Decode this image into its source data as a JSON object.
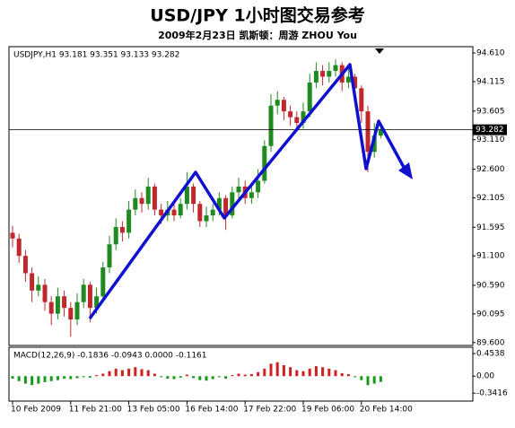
{
  "chart_data": [
    {
      "type": "candlestick",
      "title": "USD/JPY 1小时图交易参考",
      "subtitle": "2009年2月23日 凯斯顿：周游 ZHOU You",
      "legend_text": "USDJPY,H1  93.181 93.351 93.133 93.282",
      "categories": [
        "10 Feb 2009",
        null,
        null,
        null,
        null,
        null,
        null,
        null,
        null,
        "11 Feb 21:00",
        null,
        null,
        null,
        null,
        null,
        null,
        null,
        null,
        "13 Feb 05:00",
        null,
        null,
        null,
        null,
        null,
        null,
        null,
        null,
        "16 Feb 14:00",
        null,
        null,
        null,
        null,
        null,
        null,
        null,
        null,
        "17 Feb 22:00",
        null,
        null,
        null,
        null,
        null,
        null,
        null,
        null,
        "19 Feb 06:00",
        null,
        null,
        null,
        null,
        null,
        null,
        null,
        null,
        "20 Feb 14:00",
        null,
        null,
        null
      ],
      "open": [
        91.5,
        91.4,
        91.1,
        90.8,
        90.5,
        90.6,
        90.3,
        90.1,
        90.4,
        90.2,
        90.0,
        90.3,
        90.6,
        90.2,
        90.4,
        90.9,
        91.3,
        91.6,
        91.5,
        91.9,
        92.1,
        92.0,
        92.3,
        91.9,
        91.8,
        91.9,
        91.8,
        92.0,
        92.3,
        92.0,
        91.7,
        91.8,
        91.9,
        92.1,
        91.8,
        92.2,
        92.3,
        92.1,
        92.2,
        92.4,
        93.0,
        93.7,
        93.8,
        93.6,
        93.5,
        93.4,
        93.6,
        94.1,
        94.3,
        94.2,
        94.3,
        94.4,
        94.1,
        94.2,
        94.0,
        93.6,
        92.9,
        93.181
      ],
      "high": [
        91.62,
        91.48,
        91.2,
        90.9,
        90.75,
        90.7,
        90.4,
        90.55,
        90.5,
        90.3,
        90.45,
        90.7,
        90.65,
        90.55,
        91.0,
        91.45,
        91.75,
        91.7,
        92.05,
        92.25,
        92.2,
        92.45,
        92.35,
        92.0,
        92.05,
        92.0,
        92.1,
        92.55,
        92.35,
        92.05,
        91.95,
        92.0,
        92.2,
        92.15,
        92.3,
        92.45,
        92.4,
        92.35,
        92.6,
        93.1,
        93.9,
        93.95,
        93.85,
        93.7,
        93.6,
        93.75,
        94.25,
        94.45,
        94.4,
        94.45,
        94.5,
        94.45,
        94.35,
        94.25,
        94.05,
        93.7,
        93.4,
        93.351
      ],
      "low": [
        91.25,
        90.98,
        90.65,
        90.3,
        90.4,
        90.15,
        89.9,
        90.0,
        90.05,
        89.7,
        89.9,
        90.2,
        89.95,
        90.1,
        90.3,
        90.8,
        91.2,
        91.35,
        91.4,
        91.8,
        91.85,
        91.9,
        91.8,
        91.65,
        91.7,
        91.7,
        91.75,
        91.9,
        91.85,
        91.6,
        91.6,
        91.7,
        91.8,
        91.55,
        91.75,
        92.1,
        92.0,
        92.0,
        92.1,
        92.35,
        92.9,
        93.55,
        93.45,
        93.35,
        93.3,
        93.3,
        93.5,
        94.0,
        94.05,
        94.1,
        94.2,
        93.95,
        94.0,
        93.85,
        93.4,
        92.55,
        92.8,
        93.133
      ],
      "close": [
        91.4,
        91.1,
        90.8,
        90.5,
        90.6,
        90.3,
        90.1,
        90.4,
        90.2,
        90.0,
        90.3,
        90.6,
        90.2,
        90.4,
        90.9,
        91.3,
        91.6,
        91.5,
        91.9,
        92.1,
        92.0,
        92.3,
        91.9,
        91.8,
        91.9,
        91.8,
        92.0,
        92.3,
        92.0,
        91.7,
        91.8,
        91.9,
        92.1,
        91.8,
        92.2,
        92.3,
        92.1,
        92.2,
        92.4,
        93.0,
        93.7,
        93.8,
        93.6,
        93.5,
        93.4,
        93.6,
        94.1,
        94.3,
        94.2,
        94.3,
        94.4,
        94.1,
        94.2,
        94.0,
        93.6,
        92.9,
        93.18,
        93.282
      ],
      "up_color": "#1f8a1f",
      "down_color": "#c0282d",
      "last_price": 93.282,
      "ylim": [
        89.55,
        94.72
      ],
      "yticks": [
        {
          "value": 94.61,
          "label": "94.610"
        },
        94.115,
        93.605,
        {
          "value": 93.11,
          "label": "93.110"
        },
        {
          "value": 92.6,
          "label": "92.600"
        },
        92.105,
        91.595,
        {
          "value": 91.1,
          "label": "91.100"
        },
        {
          "value": 90.59,
          "label": "90.590"
        },
        90.095,
        {
          "value": 89.6,
          "label": "89.600"
        }
      ]
    },
    {
      "type": "bar",
      "legend_text": "MACD(12,26,9) -0.1836 -0.0943 0.0000 -0.1161",
      "values": [
        -0.05,
        -0.1,
        -0.15,
        -0.18,
        -0.15,
        -0.12,
        -0.1,
        -0.08,
        -0.05,
        -0.06,
        -0.04,
        -0.02,
        -0.03,
        0.02,
        0.05,
        0.1,
        0.15,
        0.12,
        0.15,
        0.18,
        0.14,
        0.12,
        0.05,
        -0.02,
        -0.05,
        -0.06,
        -0.03,
        0.03,
        -0.04,
        -0.08,
        -0.09,
        -0.06,
        -0.02,
        -0.05,
        0.02,
        0.05,
        0.03,
        0.04,
        0.08,
        0.15,
        0.25,
        0.28,
        0.22,
        0.18,
        0.12,
        0.1,
        0.15,
        0.2,
        0.18,
        0.15,
        0.12,
        0.06,
        0.04,
        -0.02,
        -0.08,
        -0.18,
        -0.15,
        -0.1161
      ],
      "up_color": "#d02020",
      "down_color": "#1a9a1a",
      "ylim": [
        -0.5,
        0.58
      ],
      "yticks": [
        0.4538,
        {
          "value": 0,
          "label": "0.00"
        },
        -0.3416
      ]
    }
  ]
}
